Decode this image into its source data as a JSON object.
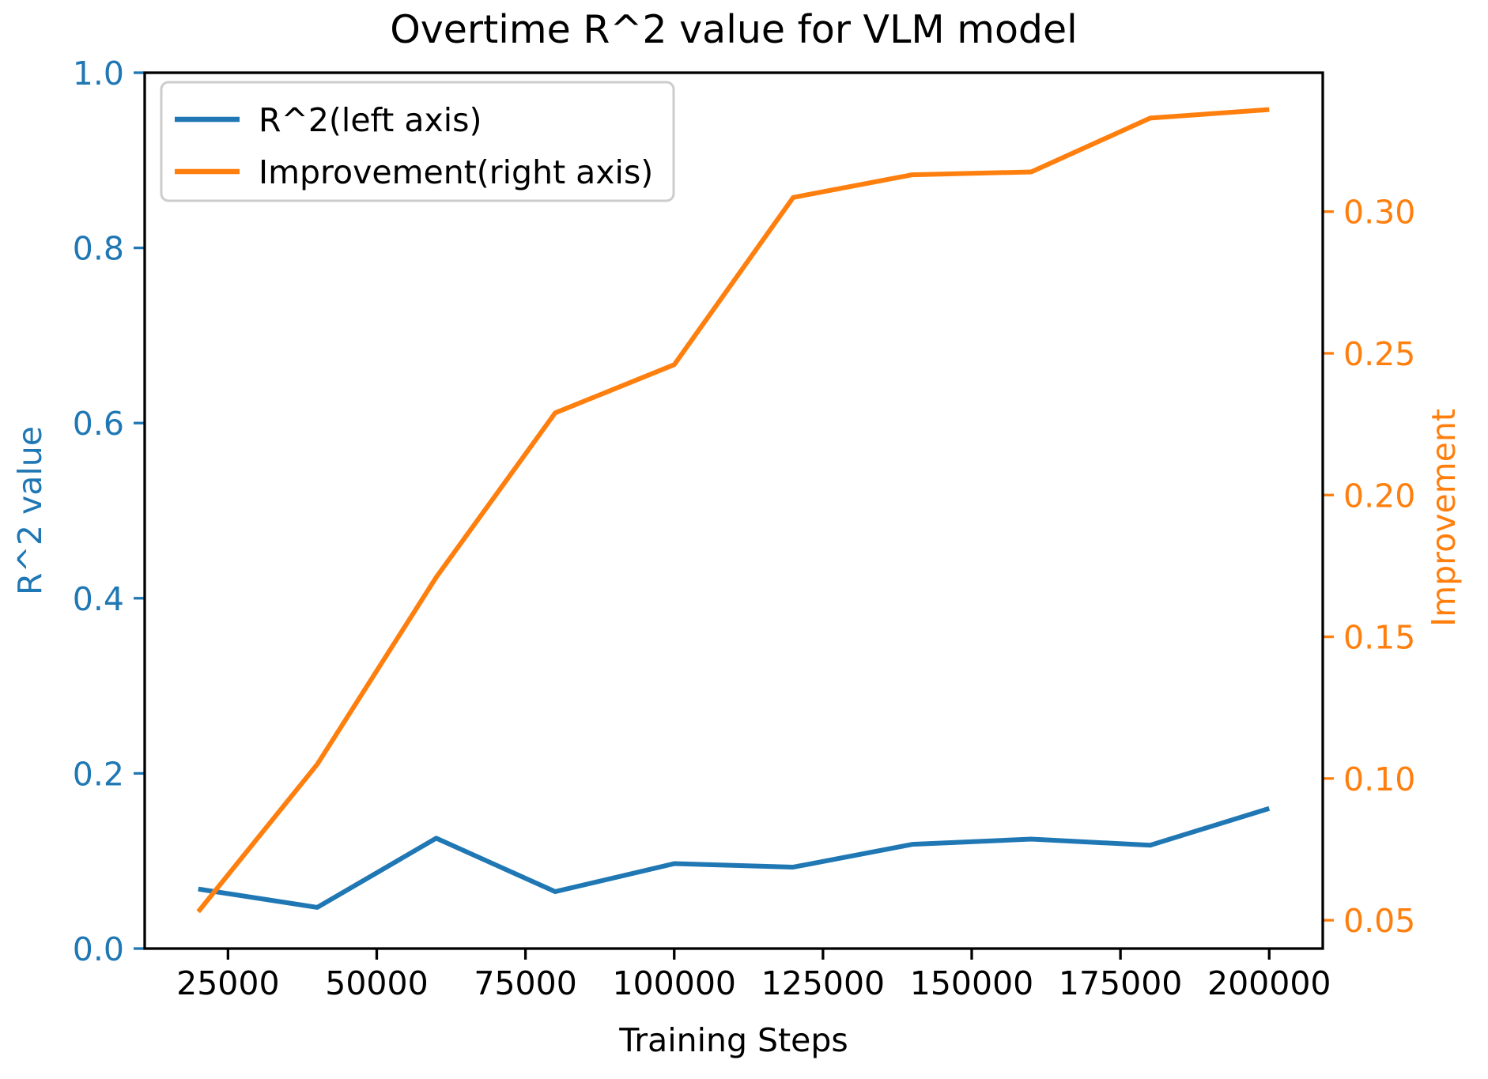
{
  "figure": {
    "title": "Overtime R^2 value for VLM model",
    "xlabel": "Training Steps",
    "ylabel_left": "R^2 value",
    "ylabel_right": "Improvement"
  },
  "legend": {
    "position": "upper left",
    "items": [
      {
        "label": "R^2(left axis)",
        "color": "#1f77b4"
      },
      {
        "label": "Improvement(right axis)",
        "color": "#ff7f0e"
      }
    ]
  },
  "chart_data": {
    "type": "line",
    "title": "Overtime R^2 value for VLM model",
    "xlabel": "Training Steps",
    "ylabel_left": "R^2 value",
    "ylabel_right": "Improvement",
    "x": [
      20000,
      40000,
      60000,
      80000,
      100000,
      120000,
      140000,
      160000,
      180000,
      200000
    ],
    "series": [
      {
        "name": "R^2(left axis)",
        "axis": "left",
        "color": "#1f77b4",
        "values": [
          0.068,
          0.047,
          0.126,
          0.065,
          0.097,
          0.093,
          0.119,
          0.125,
          0.118,
          0.16
        ]
      },
      {
        "name": "Improvement(right axis)",
        "axis": "right",
        "color": "#ff7f0e",
        "values": [
          0.053,
          0.105,
          0.171,
          0.229,
          0.246,
          0.305,
          0.313,
          0.314,
          0.333,
          0.336
        ]
      }
    ],
    "axes": {
      "x": {
        "lim": [
          11000,
          209000
        ],
        "ticks": [
          25000,
          50000,
          75000,
          100000,
          125000,
          150000,
          175000,
          200000
        ],
        "tick_color": "#000000"
      },
      "y_left": {
        "lim": [
          0.0,
          1.0
        ],
        "ticks": [
          0.0,
          0.2,
          0.4,
          0.6,
          0.8,
          1.0
        ],
        "tick_color": "#1f77b4"
      },
      "y_right": {
        "lim": [
          0.04,
          0.349
        ],
        "ticks": [
          0.05,
          0.1,
          0.15,
          0.2,
          0.25,
          0.3
        ],
        "tick_color": "#ff7f0e"
      }
    },
    "grid": false,
    "legend_position": "upper left"
  }
}
